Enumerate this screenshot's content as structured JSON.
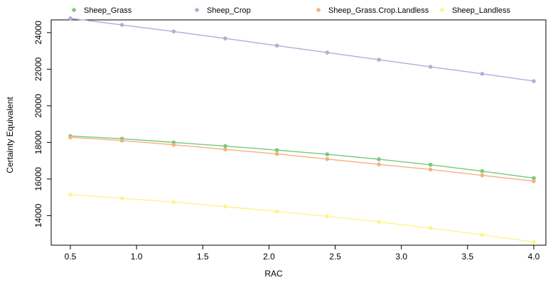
{
  "chart_data": {
    "type": "line",
    "title": "",
    "xlabel": "RAC",
    "ylabel": "Certainty Equivalent",
    "xlim": [
      0.5,
      4.0
    ],
    "ylim": [
      12500,
      24500
    ],
    "x_ticks": [
      0.5,
      1.0,
      1.5,
      2.0,
      2.5,
      3.0,
      3.5,
      4.0
    ],
    "x_tick_labels": [
      "0.5",
      "1.0",
      "1.5",
      "2.0",
      "2.5",
      "3.0",
      "3.5",
      "4.0"
    ],
    "y_ticks": [
      14000,
      16000,
      18000,
      20000,
      22000,
      24000
    ],
    "y_tick_labels": [
      "14000",
      "16000",
      "18000",
      "20000",
      "22000",
      "24000"
    ],
    "legend_position": "top",
    "grid": false,
    "x": [
      0.5,
      0.89,
      1.28,
      1.67,
      2.06,
      2.44,
      2.83,
      3.22,
      3.61,
      4.0
    ],
    "series": [
      {
        "name": "Sheep_Grass",
        "color": "#77c97a",
        "values": [
          18350,
          18200,
          18000,
          17800,
          17580,
          17350,
          17080,
          16780,
          16430,
          16050
        ]
      },
      {
        "name": "Sheep_Crop",
        "color": "#b7aad8",
        "values": [
          24780,
          24420,
          24060,
          23680,
          23290,
          22910,
          22520,
          22130,
          21750,
          21350
        ]
      },
      {
        "name": "Sheep_Grass.Crop.Landless",
        "color": "#f6b07d",
        "values": [
          18280,
          18100,
          17870,
          17620,
          17370,
          17090,
          16800,
          16520,
          16200,
          15880
        ]
      },
      {
        "name": "Sheep_Landless",
        "color": "#fdf48c",
        "values": [
          15150,
          14950,
          14740,
          14490,
          14230,
          13960,
          13660,
          13320,
          12950,
          12560
        ]
      }
    ]
  }
}
